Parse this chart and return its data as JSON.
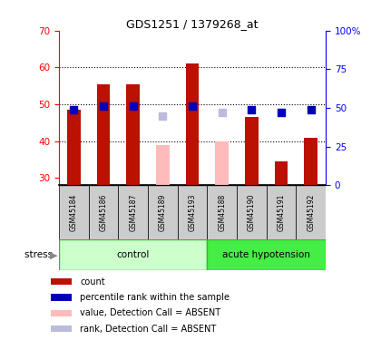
{
  "title": "GDS1251 / 1379268_at",
  "samples": [
    "GSM45184",
    "GSM45186",
    "GSM45187",
    "GSM45189",
    "GSM45193",
    "GSM45188",
    "GSM45190",
    "GSM45191",
    "GSM45192"
  ],
  "n_control": 5,
  "n_hypotension": 4,
  "bar_values": [
    48.5,
    55.5,
    55.5,
    39.0,
    61.0,
    40.0,
    46.5,
    34.5,
    41.0
  ],
  "bar_absent": [
    false,
    false,
    false,
    true,
    false,
    true,
    false,
    false,
    false
  ],
  "percentile_values": [
    49,
    51,
    51,
    45,
    51,
    47,
    49,
    47,
    49
  ],
  "percentile_absent": [
    false,
    false,
    false,
    true,
    false,
    true,
    false,
    false,
    false
  ],
  "ylim_left": [
    28,
    70
  ],
  "ylim_right": [
    0,
    100
  ],
  "yticks_left": [
    30,
    40,
    50,
    60,
    70
  ],
  "yticks_right": [
    0,
    25,
    50,
    75,
    100
  ],
  "ytick_labels_right": [
    "0",
    "25",
    "50",
    "75",
    "100%"
  ],
  "hlines": [
    40,
    50,
    60
  ],
  "bar_color_present": "#bb1100",
  "bar_color_absent": "#ffbbbb",
  "rank_color_present": "#0000bb",
  "rank_color_absent": "#bbbbdd",
  "group_color_control": "#ccffcc",
  "group_color_hypotension": "#44ee44",
  "stress_label": "stress",
  "group_labels": [
    "control",
    "acute hypotension"
  ],
  "legend_items": [
    {
      "label": "count",
      "color": "#bb1100"
    },
    {
      "label": "percentile rank within the sample",
      "color": "#0000bb"
    },
    {
      "label": "value, Detection Call = ABSENT",
      "color": "#ffbbbb"
    },
    {
      "label": "rank, Detection Call = ABSENT",
      "color": "#bbbbdd"
    }
  ]
}
